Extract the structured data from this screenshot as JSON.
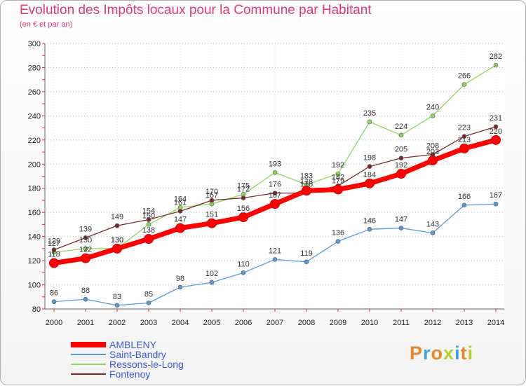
{
  "title": "Evolution des Impôts locaux pour la Commune par Habitant",
  "subtitle": "(en € et par an)",
  "logo_text": "Proxiti",
  "chart_data": {
    "type": "line",
    "title": "Evolution des Impôts locaux pour la Commune par Habitant",
    "subtitle": "(en € et par an)",
    "xlabel": "",
    "ylabel": "",
    "x": [
      "2000",
      "2001",
      "2002",
      "2003",
      "2004",
      "2005",
      "2006",
      "2007",
      "2008",
      "2009",
      "2010",
      "2011",
      "2012",
      "2013",
      "2014"
    ],
    "ylim": [
      80,
      300
    ],
    "yticks": [
      80,
      100,
      120,
      140,
      160,
      180,
      200,
      220,
      240,
      260,
      280,
      300
    ],
    "grid": true,
    "legend_position": "bottom-left",
    "series": [
      {
        "name": "AMBLENY",
        "color": "#ff0000",
        "values": [
          118,
          122,
          130,
          138,
          147,
          151,
          156,
          167,
          178,
          179,
          184,
          192,
          203,
          213,
          220
        ]
      },
      {
        "name": "Saint-Bandry",
        "color": "#5b9bd5",
        "values": [
          86,
          88,
          83,
          85,
          98,
          102,
          110,
          121,
          119,
          136,
          146,
          147,
          143,
          166,
          167
        ]
      },
      {
        "name": "Ressons-le-Long",
        "color": "#8fd65a",
        "values": [
          127,
          130,
          130,
          150,
          164,
          167,
          175,
          193,
          183,
          192,
          235,
          224,
          240,
          266,
          282
        ]
      },
      {
        "name": "Fontenoy",
        "color": "#7a2a2a",
        "values": [
          129,
          139,
          149,
          154,
          161,
          170,
          172,
          176,
          176,
          182,
          198,
          205,
          208,
          223,
          231
        ]
      }
    ]
  }
}
